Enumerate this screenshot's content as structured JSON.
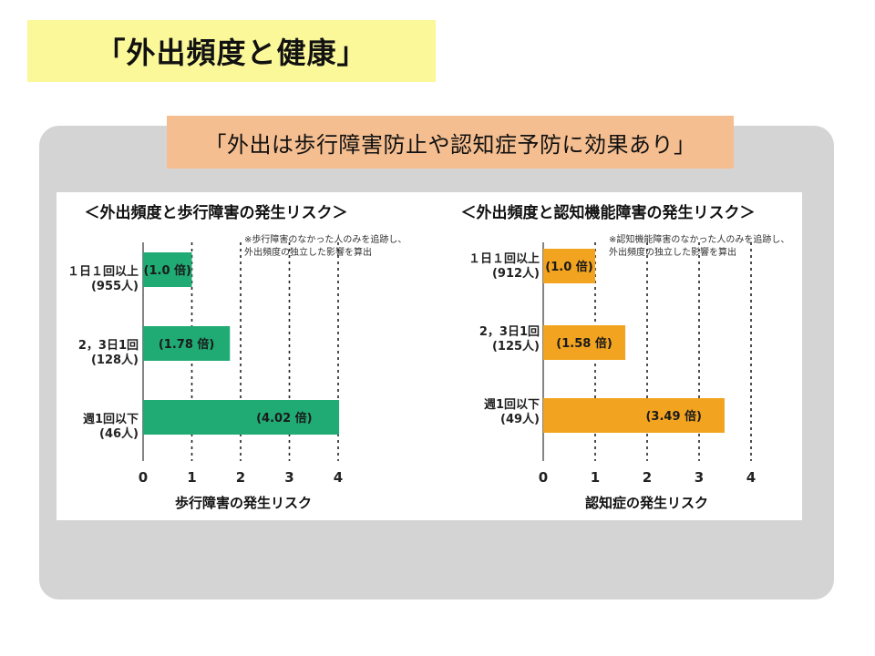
{
  "page_title": "「外出頻度と健康」",
  "subtitle": "「外出は歩行障害防止や認知症予防に効果あり」",
  "chart_data": [
    {
      "type": "bar",
      "orientation": "horizontal",
      "title": "＜外出頻度と歩行障害の発生リスク＞",
      "note": "※歩行障害のなかった人のみを追跡し、\n外出頻度の独立した影響を算出",
      "categories": [
        "１日１回以上",
        "2，3日1回",
        "週1回以下"
      ],
      "counts": [
        "(955人)",
        "(128人)",
        "(46人)"
      ],
      "values": [
        1.0,
        1.78,
        4.02
      ],
      "value_labels": [
        "(1.0 倍)",
        "(1.78 倍)",
        "(4.02 倍)"
      ],
      "xlabel": "歩行障害の発生リスク",
      "xlim": [
        0,
        4
      ],
      "ticks": [
        "0",
        "1",
        "2",
        "3",
        "4"
      ],
      "grid": "dotted vertical at 1, 2, 3, 4",
      "color": "#20aa74"
    },
    {
      "type": "bar",
      "orientation": "horizontal",
      "title": "＜外出頻度と認知機能障害の発生リスク＞",
      "note": "※認知機能障害のなかった人のみを追跡し、\n外出頻度の独立した影響を算出",
      "categories": [
        "１日１回以上",
        "2，3日1回",
        "週1回以下"
      ],
      "counts": [
        "(912人)",
        "(125人)",
        "(49人)"
      ],
      "values": [
        1.0,
        1.58,
        3.49
      ],
      "value_labels": [
        "(1.0 倍)",
        "(1.58 倍)",
        "(3.49 倍)"
      ],
      "xlabel": "認知症の発生リスク",
      "xlim": [
        0,
        4
      ],
      "ticks": [
        "0",
        "1",
        "2",
        "3",
        "4"
      ],
      "grid": "dotted vertical at 1, 2, 3, 4",
      "color": "#f2a31f"
    }
  ]
}
